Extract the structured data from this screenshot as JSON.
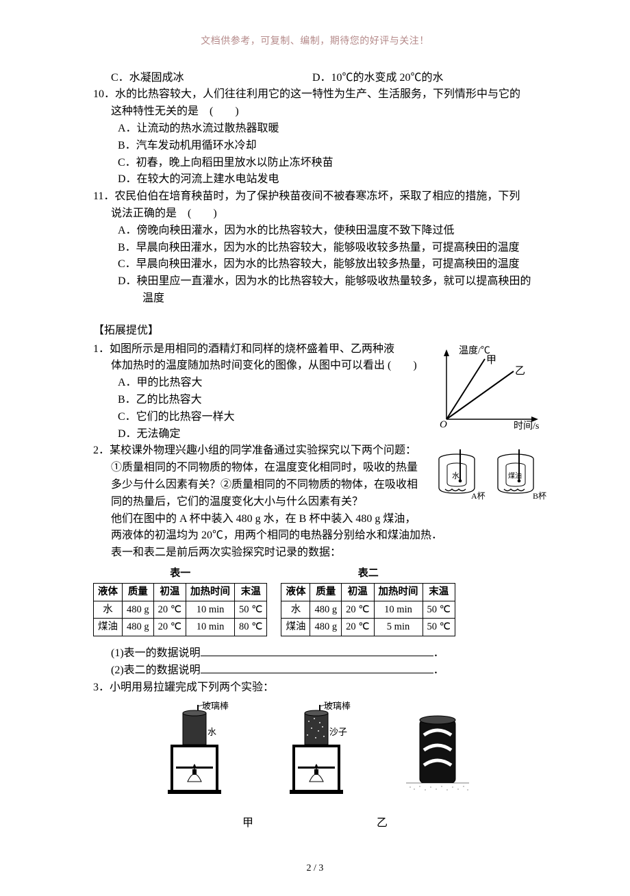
{
  "header_note": "文档供参考，可复制、编制，期待您的好评与关注！",
  "q9": {
    "c": "C．水凝固成冰",
    "d": "D．10℃的水变成 20℃的水"
  },
  "q10": {
    "stem1": "10．水的比热容较大，人们往往利用它的这一特性为生产、生活服务，下列情形中与它的",
    "stem2": "这种特性无关的是　(　　)",
    "a": "A．让流动的热水流过散热器取暖",
    "b": "B．汽车发动机用循环水冷却",
    "c": "C．初春，晚上向稻田里放水以防止冻坏秧苗",
    "d": "D．在较大的河流上建水电站发电"
  },
  "q11": {
    "stem1": "11．农民伯伯在培育秧苗时，为了保护秧苗夜间不被春寒冻坏，采取了相应的措施，下列",
    "stem2": "说法正确的是　(　　)",
    "a": "A．傍晚向秧田灌水，因为水的比热容较大，使秧田温度不致下降过低",
    "b": "B．早晨向秧田灌水，因为水的比热容较大，能够吸收较多热量，可提高秧田的温度",
    "c": "C．早晨向秧田灌水，因为水的比热容较大，能够放出较多热量，可提高秧田的温度",
    "d1": "D．秧田里应一直灌水，因为水的比热容较大，能够吸收热量较多，就可以提高秧田的",
    "d2": "温度"
  },
  "ext_title": "【拓展提优】",
  "ext1": {
    "line1": "1．如图所示是用相同的酒精灯和同样的烧杯盛着甲、乙两种液",
    "line2": "体加热时的温度随加热时间变化的图像，从图中可以看出 (　　)",
    "a": "A．甲的比热容大",
    "b": "B．乙的比热容大",
    "c": "C．它们的比热容一样大",
    "d": "D．无法确定"
  },
  "graph": {
    "y_label": "温度/℃",
    "x_label": "时间/s",
    "origin": "O",
    "line1": "甲",
    "line2": "乙",
    "axis_color": "#000000",
    "line_color": "#000000",
    "bg": "#ffffff"
  },
  "ext2": {
    "line1": "2．某校课外物理兴趣小组的同学准备通过实验探究以下两个问题：",
    "line2": "①质量相同的不同物质的物体，在温度变化相同时，吸收的热量",
    "line3": "多少与什么因素有关？②质量相同的不同物质的物体，在吸收相",
    "line4": "同的热量后，它们的温度变化大小与什么因素有关？",
    "line5": "他们在图中的 A 杯中装入 480 g 水，在 B 杯中装入 480 g 煤油，",
    "line6": "两液体的初温均为 20℃，用两个相同的电热器分别给水和煤油加热．",
    "line7": "表一和表二是前后两次实验探究时记录的数据：",
    "fill1_prefix": "(1)表一的数据说明",
    "fill2_prefix": "(2)表二的数据说明",
    "period": "．"
  },
  "beakers": {
    "left_inner": "水",
    "left_outer": "A杯",
    "right_inner": "煤油",
    "right_outer": "B杯"
  },
  "table1": {
    "caption": "表一",
    "cols": [
      "液体",
      "质量",
      "初温",
      "加热时间",
      "末温"
    ],
    "rows": [
      [
        "水",
        "480 g",
        "20 ℃",
        "10 min",
        "50 ℃"
      ],
      [
        "煤油",
        "480 g",
        "20 ℃",
        "10 min",
        "80 ℃"
      ]
    ]
  },
  "table2": {
    "caption": "表二",
    "cols": [
      "液体",
      "质量",
      "初温",
      "加热时间",
      "末温"
    ],
    "rows": [
      [
        "水",
        "480 g",
        "20 ℃",
        "10 min",
        "50 ℃"
      ],
      [
        "煤油",
        "480 g",
        "20 ℃",
        "5 min",
        "50 ℃"
      ]
    ]
  },
  "ext3": {
    "stem": "3．小明用易拉罐完成下列两个实验：",
    "rod_label": "玻璃棒",
    "water_label": "水",
    "sand_label": "沙子",
    "cap_left": "甲",
    "cap_right": "乙"
  },
  "page_num": "2 / 3"
}
